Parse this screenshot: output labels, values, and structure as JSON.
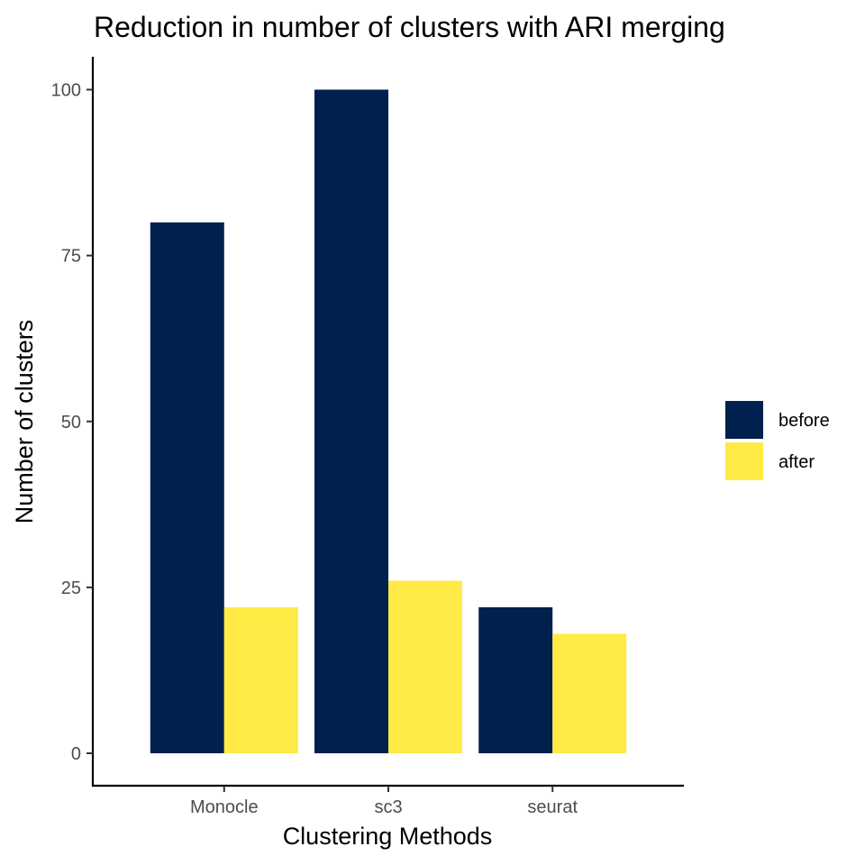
{
  "chart_data": {
    "type": "bar",
    "title": "Reduction in number of clusters with ARI merging",
    "xlabel": "Clustering Methods",
    "ylabel": "Number of clusters",
    "categories": [
      "Monocle",
      "sc3",
      "seurat"
    ],
    "series": [
      {
        "name": "before",
        "color": "#00204d",
        "values": [
          80,
          100,
          22
        ]
      },
      {
        "name": "after",
        "color": "#ffea46",
        "values": [
          22,
          26,
          18
        ]
      }
    ],
    "yticks": [
      0,
      25,
      50,
      75,
      100
    ],
    "ytick_labels": [
      "0",
      "25",
      "50",
      "75",
      "100"
    ],
    "ylim": [
      -5,
      105
    ],
    "grid": false,
    "legend_position": "right"
  }
}
